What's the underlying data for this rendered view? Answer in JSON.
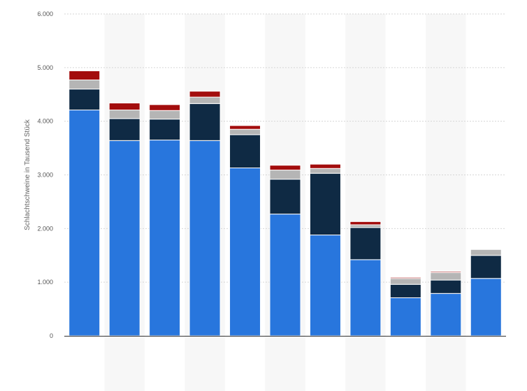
{
  "chart_data": {
    "type": "bar",
    "stacked": true,
    "title": "",
    "xlabel": "",
    "ylabel": "Schlachtschweine in Tausend Stück",
    "ylim": [
      0,
      6000
    ],
    "y_ticks": [
      "0",
      "1.000",
      "2.000",
      "3.000",
      "4.000",
      "5.000",
      "6.000"
    ],
    "y_tick_values": [
      0,
      1000,
      2000,
      3000,
      4000,
      5000,
      6000
    ],
    "categories": [
      "",
      "",
      "",
      "",
      "",
      "",
      "",
      "",
      "",
      "",
      ""
    ],
    "grid": true,
    "legend": "none",
    "series": [
      {
        "color": "#2876dd",
        "values": [
          4210,
          3640,
          3650,
          3640,
          3130,
          2270,
          1880,
          1420,
          710,
          790,
          1070
        ]
      },
      {
        "color": "#0f2a44",
        "values": [
          390,
          410,
          390,
          690,
          620,
          650,
          1150,
          600,
          250,
          250,
          430
        ]
      },
      {
        "color": "#b5b5b5",
        "values": [
          170,
          160,
          160,
          120,
          100,
          170,
          90,
          50,
          110,
          140,
          110
        ]
      },
      {
        "color": "#a30d0d",
        "values": [
          170,
          130,
          110,
          110,
          70,
          90,
          80,
          60,
          20,
          20,
          0
        ]
      }
    ]
  }
}
